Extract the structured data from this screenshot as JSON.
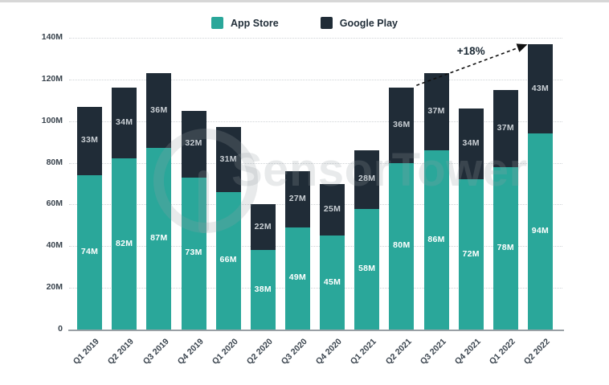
{
  "watermark": {
    "text": "SensorTower"
  },
  "chart_data": {
    "type": "bar",
    "stacked": true,
    "title": "",
    "categories": [
      "Q1 2019",
      "Q2 2019",
      "Q3 2019",
      "Q4 2019",
      "Q1 2020",
      "Q2 2020",
      "Q3 2020",
      "Q4 2020",
      "Q1 2021",
      "Q2 2021",
      "Q3 2021",
      "Q4 2021",
      "Q1 2022",
      "Q2 2022"
    ],
    "series": [
      {
        "name": "App Store",
        "color": "#2aa79a",
        "label_color": "#ffffff",
        "values": [
          74,
          82,
          87,
          73,
          66,
          38,
          49,
          45,
          58,
          80,
          86,
          72,
          78,
          94
        ]
      },
      {
        "name": "Google Play",
        "color": "#202c37",
        "label_color": "#c9cfd4",
        "values": [
          33,
          34,
          36,
          32,
          31,
          22,
          27,
          25,
          28,
          36,
          37,
          34,
          37,
          43
        ]
      }
    ],
    "totals": [
      107,
      116,
      123,
      105,
      97,
      60,
      76,
      70,
      86,
      116,
      123,
      106,
      115,
      137
    ],
    "value_suffix": "M",
    "ylim": [
      0,
      140
    ],
    "ytick_step": 20,
    "ytick_labels": [
      "0",
      "20M",
      "40M",
      "60M",
      "80M",
      "100M",
      "120M",
      "140M"
    ],
    "xlabel": "",
    "ylabel": "",
    "grid": "horizontal-dotted",
    "legend_position": "top-center",
    "annotation": {
      "label": "+18%",
      "from": "Q2 2021",
      "to": "Q2 2022"
    }
  }
}
